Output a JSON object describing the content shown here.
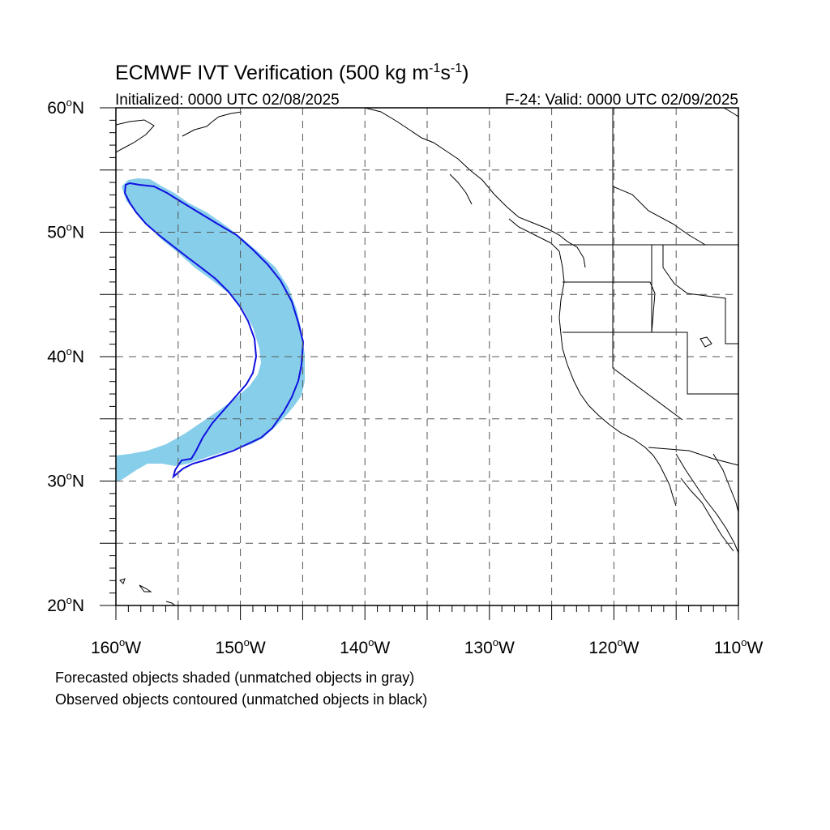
{
  "title": {
    "main_prefix": "ECMWF IVT Verification (500 kg m",
    "exp1": "-1",
    "mid": "s",
    "exp2": "-1",
    "suffix": ")"
  },
  "subtitle_left": "Initialized: 0000 UTC 02/08/2025",
  "subtitle_right": "F-24: Valid: 0000 UTC 02/09/2025",
  "map": {
    "lon_range": [
      -160,
      -110
    ],
    "lat_range": [
      20,
      60
    ],
    "lat_ticks": [
      "60",
      "50",
      "40",
      "30",
      "20"
    ],
    "lon_ticks": [
      "160",
      "150",
      "140",
      "130",
      "120",
      "110"
    ],
    "lat_suffix": "N",
    "lon_suffix": "W",
    "degree_mark": "o",
    "grid": "dashed every 5 degrees",
    "colors": {
      "forecast_fill": "#87ceeb",
      "observed_contour": "#1010e0",
      "coastline": "#000000",
      "grid": "#555555"
    }
  },
  "notes": {
    "forecast": "Forecasted objects shaded (unmatched objects in gray)",
    "observed": "Observed objects contoured (unmatched objects in black)"
  }
}
